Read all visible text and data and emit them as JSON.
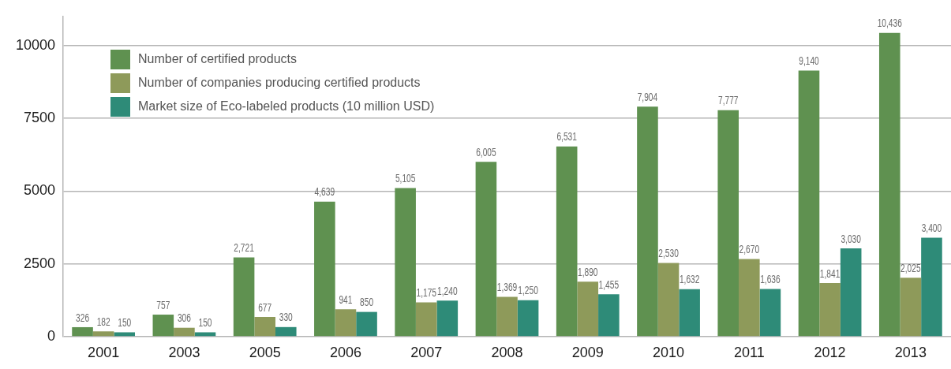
{
  "chart_data": {
    "type": "bar",
    "categories": [
      "2001",
      "2003",
      "2005",
      "2006",
      "2007",
      "2008",
      "2009",
      "2010",
      "2011",
      "2012",
      "2013"
    ],
    "series": [
      {
        "name": "Number of certified products",
        "color": "#5f9150",
        "values": [
          326,
          757,
          2721,
          4639,
          5105,
          6005,
          6531,
          7904,
          7777,
          9140,
          10436
        ],
        "value_labels": [
          "326",
          "757",
          "2,721",
          "4,639",
          "5,105",
          "6,005",
          "6,531",
          "7,904",
          "7,777",
          "9,140",
          "10,436"
        ]
      },
      {
        "name": "Number of companies producing certified products",
        "color": "#8e9a5a",
        "values": [
          182,
          306,
          677,
          941,
          1175,
          1369,
          1890,
          2530,
          2670,
          1841,
          2025
        ],
        "value_labels": [
          "182",
          "306",
          "677",
          "941",
          "1,175",
          "1,369",
          "1,890",
          "2,530",
          "2,670",
          "1,841",
          "2,025"
        ]
      },
      {
        "name": "Market size of Eco-labeled products (10 million USD)",
        "color": "#2e8b78",
        "values": [
          150,
          150,
          330,
          850,
          1240,
          1250,
          1455,
          1632,
          1636,
          3030,
          3400
        ],
        "value_labels": [
          "150",
          "150",
          "330",
          "850",
          "1,240",
          "1,250",
          "1,455",
          "1,632",
          "1,636",
          "3,030",
          "3,400"
        ]
      }
    ],
    "ylim": [
      0,
      11000
    ],
    "yticks": [
      0,
      2500,
      5000,
      7500,
      10000
    ],
    "grid": "y",
    "legend": "top left"
  }
}
